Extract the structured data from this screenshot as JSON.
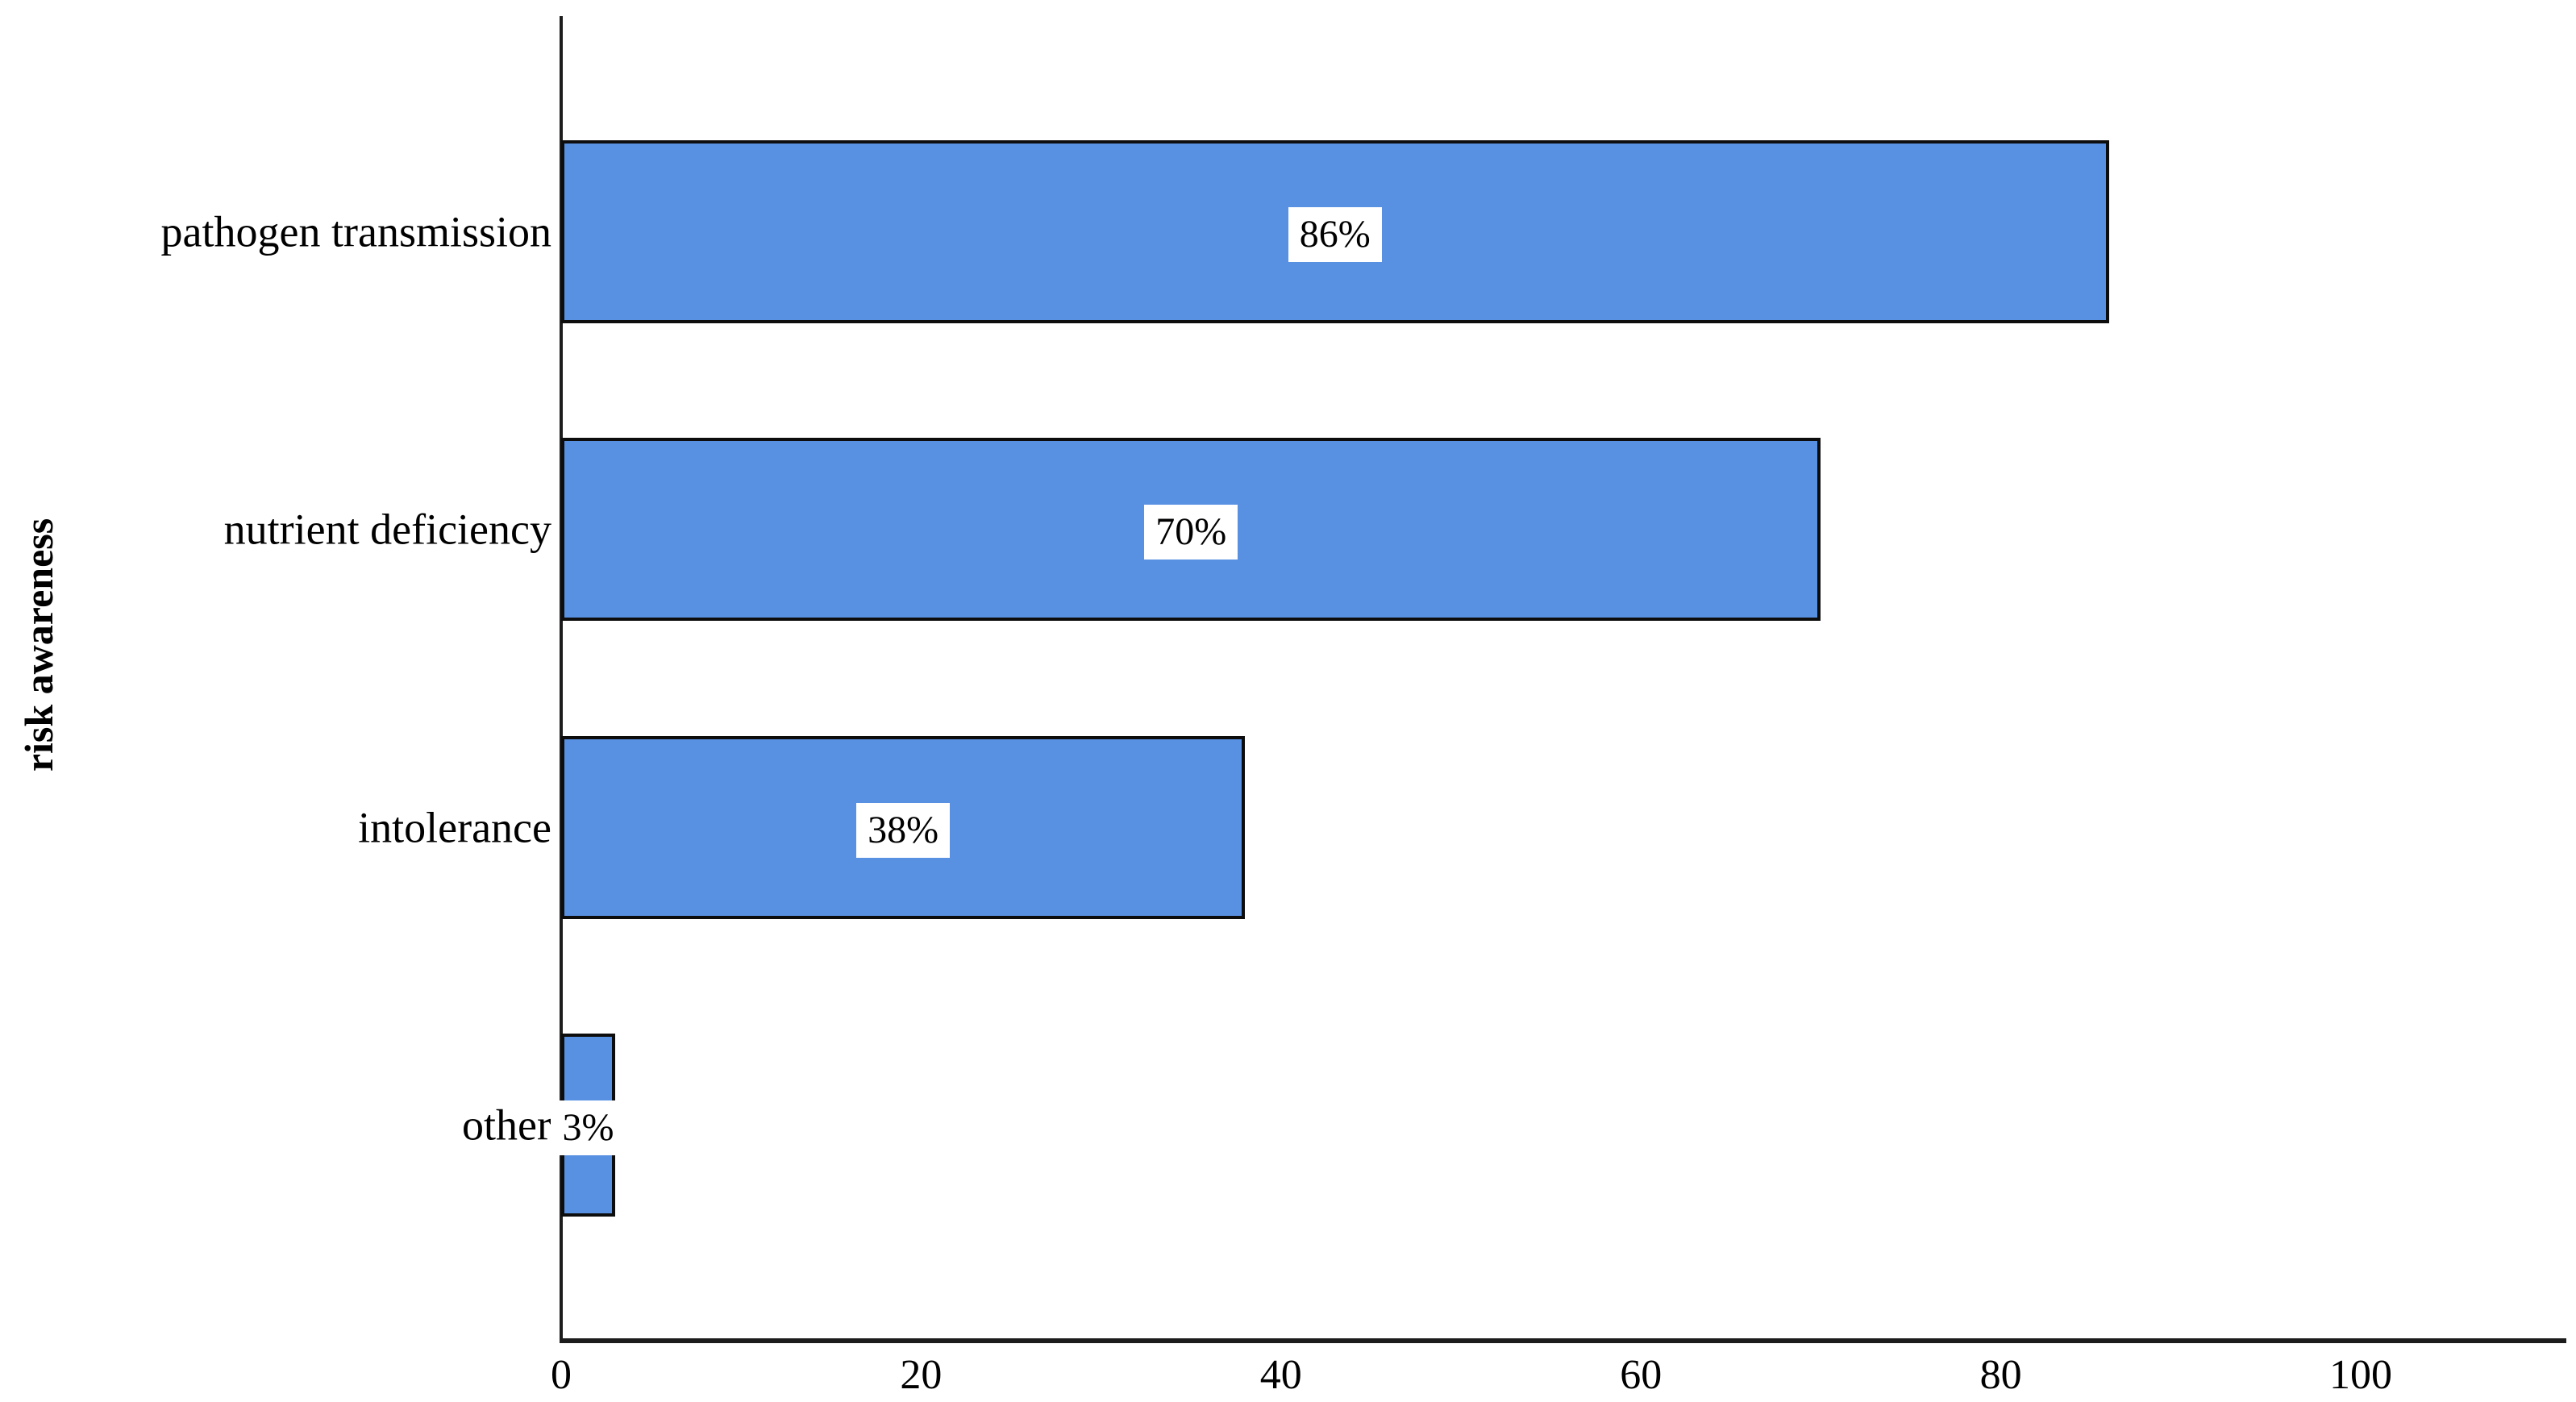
{
  "chart_data": {
    "type": "bar",
    "orientation": "horizontal",
    "ylabel": "risk awareness",
    "xlabel": "",
    "categories": [
      "pathogen transmission",
      "nutrient deficiency",
      "intolerance",
      "other"
    ],
    "values": [
      86,
      70,
      38,
      3
    ],
    "value_labels": [
      "86%",
      "70%",
      "38%",
      "3%"
    ],
    "x_ticks": [
      "0",
      "20",
      "40",
      "60",
      "80",
      "100"
    ],
    "x_tick_values": [
      0,
      20,
      40,
      60,
      80,
      100
    ],
    "xlim": [
      0,
      111
    ],
    "grid": false,
    "legend": null,
    "bar_color": "#5890E2",
    "bar_border_color": "#0d0d0d",
    "axis_color": "#1c1c1c",
    "value_label_bg": "#ffffff",
    "text_color": "#000000"
  }
}
